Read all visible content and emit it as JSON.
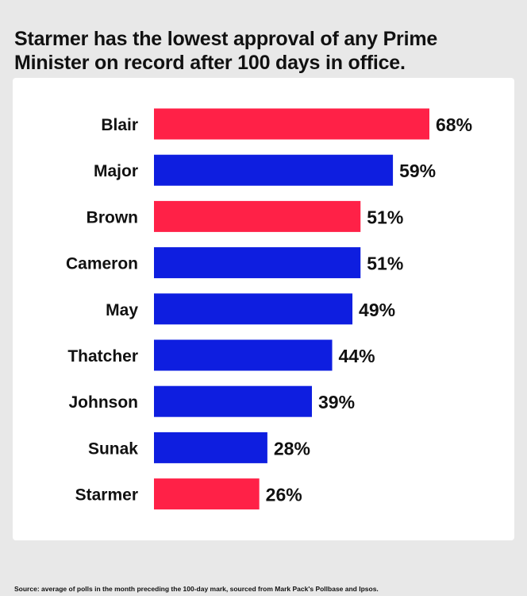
{
  "title": "Starmer has the lowest approval of any Prime Minister on record after 100 days in office.",
  "source": "Source: average of polls in the month preceding the 100-day mark, sourced from Mark Pack's Pollbase and Ipsos.",
  "colors": {
    "labour": "#ff2147",
    "conservative": "#0e1ee0",
    "background": "#e8e8e8",
    "panel": "#ffffff"
  },
  "chart_data": {
    "type": "bar",
    "orientation": "horizontal",
    "categories": [
      "Blair",
      "Major",
      "Brown",
      "Cameron",
      "May",
      "Thatcher",
      "Johnson",
      "Sunak",
      "Starmer"
    ],
    "values": [
      68,
      59,
      51,
      51,
      49,
      44,
      39,
      28,
      26
    ],
    "value_labels": [
      "68%",
      "59%",
      "51%",
      "51%",
      "49%",
      "44%",
      "39%",
      "28%",
      "26%"
    ],
    "bar_colors": [
      "#ff2147",
      "#0e1ee0",
      "#ff2147",
      "#0e1ee0",
      "#0e1ee0",
      "#0e1ee0",
      "#0e1ee0",
      "#0e1ee0",
      "#ff2147"
    ],
    "xlim": [
      0,
      68
    ],
    "grid": false,
    "legend": "none"
  }
}
